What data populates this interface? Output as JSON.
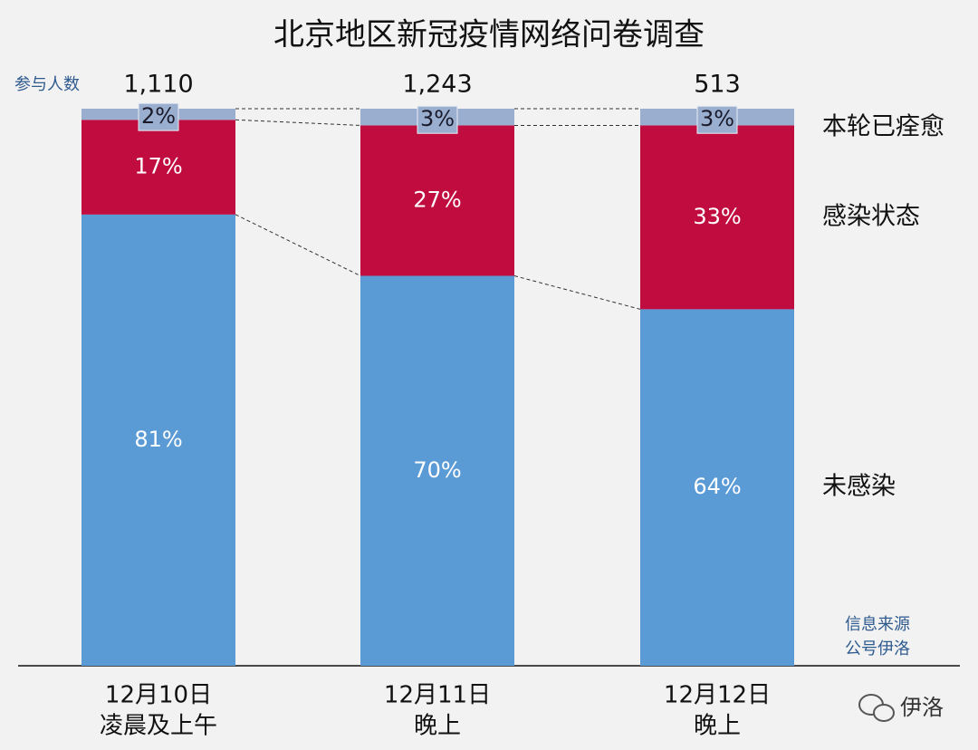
{
  "chart_data": {
    "type": "stacked_bar_100",
    "title": "北京地区新冠疫情网络问卷调查",
    "categories": [
      "12月10日",
      "12月11日",
      "12月12日"
    ],
    "category_sublabels": [
      "凌晨及上午",
      "晚上",
      "晚上"
    ],
    "ylim": [
      0,
      100
    ],
    "series": [
      {
        "name": "未感染",
        "color": "#5b9bd5",
        "values": [
          81,
          70,
          64
        ],
        "value_labels": [
          "81%",
          "70%",
          "64%"
        ]
      },
      {
        "name": "感染状态",
        "color": "#c00c3f",
        "values": [
          17,
          27,
          33
        ],
        "value_labels": [
          "17%",
          "27%",
          "33%"
        ]
      },
      {
        "name": "本轮已痊愈",
        "color": "#9aafd0",
        "values": [
          2,
          3,
          3
        ],
        "value_labels": [
          "2%",
          "3%",
          "3%"
        ]
      }
    ],
    "totals_label": "参与人数",
    "totals": [
      1110,
      1243,
      513
    ],
    "totals_labels": [
      "1,110",
      "1,243",
      "513"
    ],
    "source": [
      "信息来源",
      "公号伊洛"
    ],
    "watermark": "伊洛"
  }
}
